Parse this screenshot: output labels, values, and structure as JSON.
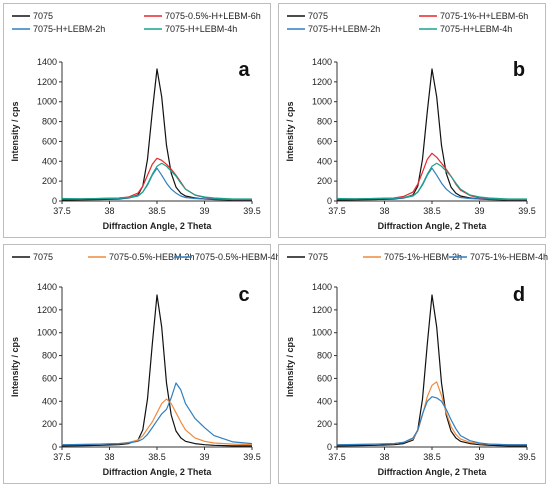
{
  "figure": {
    "panels": [
      {
        "letter": "a",
        "legend_rows": [
          [
            0,
            1
          ],
          [
            2,
            3
          ]
        ]
      },
      {
        "letter": "b",
        "legend_rows": [
          [
            0,
            1
          ],
          [
            2,
            3
          ]
        ]
      },
      {
        "letter": "c",
        "legend_rows": [
          [
            0,
            1,
            2
          ]
        ]
      },
      {
        "letter": "d",
        "legend_rows": [
          [
            0,
            1,
            2
          ]
        ]
      }
    ]
  },
  "chart_data": [
    {
      "type": "line",
      "panel_label": "a",
      "xlabel": "Diffraction Angle, 2 Theta",
      "ylabel": "Intensity / cps",
      "xlim": [
        37.5,
        39.5
      ],
      "ylim": [
        0,
        1400
      ],
      "xticks": [
        "37.5",
        "38",
        "38.5",
        "39",
        "39.5"
      ],
      "yticks": [
        "0",
        "200",
        "400",
        "600",
        "800",
        "1000",
        "1200",
        "1400"
      ],
      "x": [
        37.5,
        37.7,
        37.9,
        38.1,
        38.2,
        38.3,
        38.35,
        38.4,
        38.45,
        38.5,
        38.55,
        38.6,
        38.65,
        38.7,
        38.75,
        38.8,
        38.9,
        39.0,
        39.1,
        39.3,
        39.5
      ],
      "series": [
        {
          "name": "7075",
          "color": "#111111",
          "values": [
            10,
            12,
            15,
            20,
            30,
            60,
            150,
            420,
            900,
            1330,
            1050,
            560,
            280,
            140,
            80,
            50,
            30,
            20,
            15,
            10,
            10
          ]
        },
        {
          "name": "7075-0.5%-H+LEBM-6h",
          "color": "#e8262b",
          "values": [
            20,
            20,
            25,
            30,
            40,
            80,
            150,
            260,
            370,
            430,
            410,
            370,
            320,
            260,
            190,
            120,
            60,
            35,
            25,
            15,
            15
          ]
        },
        {
          "name": "7075-H+LEBM-2h",
          "color": "#2e7fc2",
          "values": [
            20,
            20,
            22,
            25,
            30,
            50,
            90,
            160,
            260,
            330,
            260,
            180,
            120,
            80,
            50,
            35,
            25,
            20,
            20,
            15,
            15
          ]
        },
        {
          "name": "7075-H+LEBM-4h",
          "color": "#1aa38a",
          "values": [
            25,
            22,
            25,
            30,
            35,
            55,
            90,
            170,
            270,
            350,
            380,
            350,
            300,
            250,
            180,
            120,
            60,
            40,
            30,
            20,
            20
          ]
        }
      ]
    },
    {
      "type": "line",
      "panel_label": "b",
      "xlabel": "Diffraction Angle, 2 Theta",
      "ylabel": "Intensity / cps",
      "xlim": [
        37.5,
        39.5
      ],
      "ylim": [
        0,
        1400
      ],
      "xticks": [
        "37.5",
        "38",
        "38.5",
        "39",
        "39.5"
      ],
      "yticks": [
        "0",
        "200",
        "400",
        "600",
        "800",
        "1000",
        "1200",
        "1400"
      ],
      "x": [
        37.5,
        37.7,
        37.9,
        38.1,
        38.2,
        38.3,
        38.35,
        38.4,
        38.45,
        38.5,
        38.55,
        38.6,
        38.65,
        38.7,
        38.75,
        38.8,
        38.9,
        39.0,
        39.1,
        39.3,
        39.5
      ],
      "series": [
        {
          "name": "7075",
          "color": "#111111",
          "values": [
            10,
            12,
            15,
            20,
            30,
            60,
            150,
            420,
            900,
            1330,
            1050,
            560,
            280,
            140,
            80,
            50,
            30,
            20,
            15,
            10,
            10
          ]
        },
        {
          "name": "7075-1%-H+LEBM-6h",
          "color": "#e8262b",
          "values": [
            20,
            20,
            25,
            30,
            45,
            90,
            170,
            290,
            420,
            480,
            440,
            380,
            320,
            250,
            170,
            110,
            55,
            30,
            25,
            15,
            15
          ]
        },
        {
          "name": "7075-H+LEBM-2h",
          "color": "#2e7fc2",
          "values": [
            20,
            20,
            22,
            25,
            30,
            50,
            90,
            160,
            260,
            330,
            260,
            180,
            120,
            80,
            50,
            35,
            25,
            20,
            20,
            15,
            15
          ]
        },
        {
          "name": "7075-H+LEBM-4h",
          "color": "#1aa38a",
          "values": [
            25,
            22,
            25,
            30,
            35,
            55,
            90,
            170,
            270,
            350,
            380,
            350,
            300,
            250,
            180,
            120,
            60,
            40,
            30,
            20,
            20
          ]
        }
      ]
    },
    {
      "type": "line",
      "panel_label": "c",
      "xlabel": "Diffraction Angle, 2 Theta",
      "ylabel": "Intensity / cps",
      "xlim": [
        37.5,
        39.5
      ],
      "ylim": [
        0,
        1400
      ],
      "xticks": [
        "37.5",
        "38",
        "38.5",
        "39",
        "39.5"
      ],
      "yticks": [
        "0",
        "200",
        "400",
        "600",
        "800",
        "1000",
        "1200",
        "1400"
      ],
      "x": [
        37.5,
        37.7,
        37.9,
        38.1,
        38.2,
        38.3,
        38.35,
        38.4,
        38.45,
        38.5,
        38.55,
        38.6,
        38.65,
        38.7,
        38.75,
        38.8,
        38.9,
        39.0,
        39.1,
        39.3,
        39.5
      ],
      "series": [
        {
          "name": "7075",
          "color": "#111111",
          "values": [
            10,
            12,
            15,
            20,
            30,
            60,
            150,
            420,
            900,
            1330,
            1050,
            560,
            280,
            140,
            80,
            50,
            30,
            20,
            15,
            10,
            10
          ]
        },
        {
          "name": "7075-0.5%-HEBM-2h",
          "color": "#f08a3c",
          "values": [
            20,
            22,
            25,
            30,
            40,
            60,
            100,
            160,
            220,
            300,
            380,
            420,
            380,
            300,
            220,
            150,
            80,
            50,
            35,
            25,
            20
          ]
        },
        {
          "name": "7075-0.5%-HEBM-4h",
          "color": "#2e7fc2",
          "values": [
            20,
            22,
            25,
            30,
            35,
            50,
            70,
            110,
            170,
            230,
            290,
            330,
            430,
            560,
            500,
            380,
            250,
            170,
            100,
            45,
            30
          ]
        }
      ]
    },
    {
      "type": "line",
      "panel_label": "d",
      "xlabel": "Diffraction Angle, 2 Theta",
      "ylabel": "Intensity / cps",
      "xlim": [
        37.5,
        39.5
      ],
      "ylim": [
        0,
        1400
      ],
      "xticks": [
        "37.5",
        "38",
        "38.5",
        "39",
        "39.5"
      ],
      "yticks": [
        "0",
        "200",
        "400",
        "600",
        "800",
        "1000",
        "1200",
        "1400"
      ],
      "x": [
        37.5,
        37.7,
        37.9,
        38.1,
        38.2,
        38.3,
        38.35,
        38.4,
        38.45,
        38.5,
        38.55,
        38.6,
        38.65,
        38.7,
        38.75,
        38.8,
        38.9,
        39.0,
        39.1,
        39.3,
        39.5
      ],
      "series": [
        {
          "name": "7075",
          "color": "#111111",
          "values": [
            10,
            12,
            15,
            20,
            30,
            60,
            150,
            420,
            900,
            1330,
            1050,
            560,
            280,
            140,
            80,
            50,
            30,
            20,
            15,
            10,
            10
          ]
        },
        {
          "name": "7075-1%-HEBM-2h",
          "color": "#f08a3c",
          "values": [
            20,
            22,
            25,
            30,
            40,
            70,
            140,
            280,
            440,
            540,
            570,
            450,
            300,
            180,
            110,
            70,
            40,
            30,
            25,
            20,
            20
          ]
        },
        {
          "name": "7075-1%-HEBM-4h",
          "color": "#2e7fc2",
          "values": [
            20,
            22,
            25,
            30,
            40,
            80,
            150,
            290,
            400,
            440,
            430,
            400,
            330,
            240,
            160,
            100,
            55,
            35,
            25,
            20,
            20
          ]
        }
      ]
    }
  ]
}
